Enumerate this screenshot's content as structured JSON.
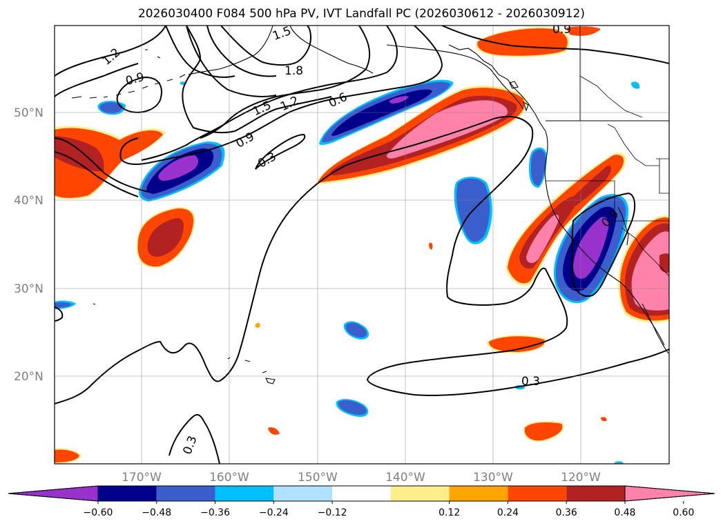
{
  "title": "2026030400 F084 500 hPa PV, IVT Landfall PC (2026030612 - 2026030912)",
  "lat_labels": [
    "50°N",
    "40°N",
    "30°N",
    "20°N"
  ],
  "lon_labels": [
    "170°W",
    "160°W",
    "150°W",
    "140°W",
    "130°W",
    "120°W"
  ],
  "contour_labels": [
    "1.2",
    "1.5",
    "1.8",
    "0.9",
    "1.5",
    "1.2",
    "0.6",
    "0.9",
    "0.3",
    "0.9",
    "0.3",
    "0.3",
    "0.9"
  ],
  "colorbar": {
    "ticks": [
      "−0.60",
      "−0.48",
      "−0.36",
      "−0.24",
      "−0.12",
      "0.12",
      "0.24",
      "0.36",
      "0.48",
      "0.60"
    ],
    "colors": [
      "#9932CC",
      "#00008B",
      "#3A5FCD",
      "#00BFFF",
      "#B0E2FF",
      "#FFFFFF",
      "#FFEC8B",
      "#FFA500",
      "#FF4500",
      "#B22222",
      "#FF82AB"
    ]
  },
  "colors": {
    "violet": "#9932CC",
    "navy": "#00008B",
    "blue": "#3A5FCD",
    "cyan": "#00BFFF",
    "lightblue": "#B0E2FF",
    "yellow": "#FFEC8B",
    "orange": "#FFA500",
    "redorange": "#FF4500",
    "firebrick": "#B22222",
    "pink": "#FF82AB"
  }
}
